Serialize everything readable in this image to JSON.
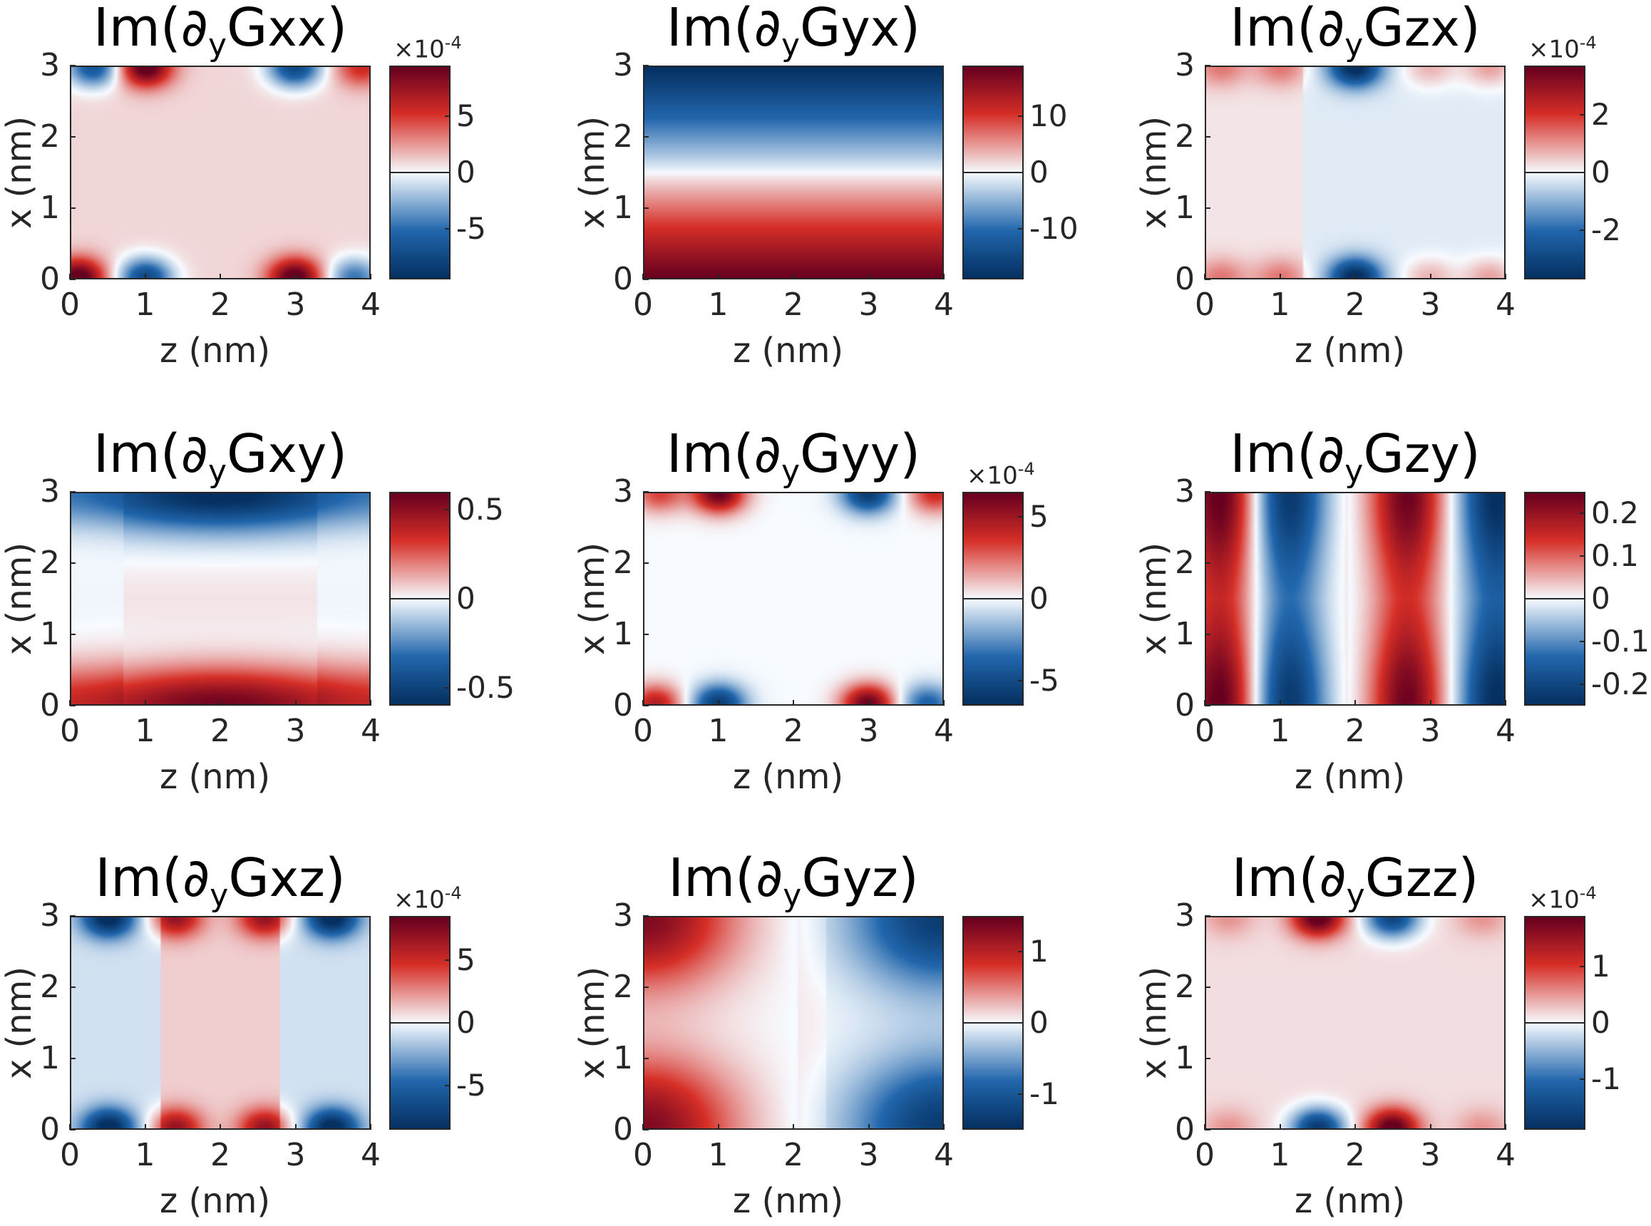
{
  "colors": {
    "negative": "#053061",
    "neutral": "#f7fbff",
    "positive": "#67001f"
  },
  "chart_data": [
    {
      "type": "heatmap",
      "title": {
        "prefix": "Im(∂",
        "sub": "y",
        "g": "G",
        "idx": "xx",
        "close": ")"
      },
      "xlabel": "z (nm)",
      "ylabel": "x (nm)",
      "x_ticks": [
        "0",
        "1",
        "2",
        "3",
        "4"
      ],
      "y_ticks": [
        "0",
        "1",
        "2",
        "3"
      ],
      "xlim": [
        0,
        4
      ],
      "ylim": [
        0,
        3
      ],
      "colorbar": {
        "multiplier": "×10",
        "exponent": "-4",
        "ticks": [
          {
            "value": 5,
            "label": "5"
          },
          {
            "value": 0,
            "label": "0"
          },
          {
            "value": -5,
            "label": "-5"
          }
        ],
        "lim": [
          -9.5,
          9.5
        ]
      },
      "pattern": "edge_lobes",
      "params": {
        "top": [
          [
            0.3,
            -0.8
          ],
          [
            1.0,
            1.0
          ],
          [
            3.0,
            -0.9
          ],
          [
            3.9,
            0.5
          ]
        ],
        "bottom": [
          [
            0.1,
            1.0
          ],
          [
            1.0,
            -0.9
          ],
          [
            3.0,
            1.0
          ],
          [
            3.8,
            -0.6
          ]
        ],
        "bg": 0.1
      }
    },
    {
      "type": "heatmap",
      "title": {
        "prefix": "Im(∂",
        "sub": "y",
        "g": "G",
        "idx": "yx",
        "close": ")"
      },
      "xlabel": "z (nm)",
      "ylabel": "x (nm)",
      "x_ticks": [
        "0",
        "1",
        "2",
        "3",
        "4"
      ],
      "y_ticks": [
        "0",
        "1",
        "2",
        "3"
      ],
      "xlim": [
        0,
        4
      ],
      "ylim": [
        0,
        3
      ],
      "colorbar": {
        "multiplier": "",
        "exponent": "",
        "ticks": [
          {
            "value": 10,
            "label": "10"
          },
          {
            "value": 0,
            "label": "0"
          },
          {
            "value": -10,
            "label": "-10"
          }
        ],
        "lim": [
          -19,
          19
        ]
      },
      "pattern": "vertical_gradient",
      "params": {
        "zero_at": 1.5
      }
    },
    {
      "type": "heatmap",
      "title": {
        "prefix": "Im(∂",
        "sub": "y",
        "g": "G",
        "idx": "zx",
        "close": ")"
      },
      "xlabel": "z (nm)",
      "ylabel": "x (nm)",
      "x_ticks": [
        "0",
        "1",
        "2",
        "3",
        "4"
      ],
      "y_ticks": [
        "0",
        "1",
        "2",
        "3"
      ],
      "xlim": [
        0,
        4
      ],
      "ylim": [
        0,
        3
      ],
      "colorbar": {
        "multiplier": "×10",
        "exponent": "-4",
        "ticks": [
          {
            "value": 2,
            "label": "2"
          },
          {
            "value": 0,
            "label": "0"
          },
          {
            "value": -2,
            "label": "-2"
          }
        ],
        "lim": [
          -3.7,
          3.7
        ]
      },
      "pattern": "edge_lobes",
      "params": {
        "top": [
          [
            0.2,
            0.3
          ],
          [
            1.0,
            0.3
          ],
          [
            2.0,
            -1.0
          ],
          [
            3.0,
            0.25
          ],
          [
            3.8,
            0.3
          ]
        ],
        "bottom": [
          [
            0.2,
            0.3
          ],
          [
            1.0,
            0.3
          ],
          [
            2.0,
            -1.0
          ],
          [
            3.0,
            0.25
          ],
          [
            3.8,
            0.3
          ]
        ],
        "bg": 0.06,
        "split": 1.3
      }
    },
    {
      "type": "heatmap",
      "title": {
        "prefix": "Im(∂",
        "sub": "y",
        "g": "G",
        "idx": "xy",
        "close": ")"
      },
      "xlabel": "z (nm)",
      "ylabel": "x (nm)",
      "x_ticks": [
        "0",
        "1",
        "2",
        "3",
        "4"
      ],
      "y_ticks": [
        "0",
        "1",
        "2",
        "3"
      ],
      "xlim": [
        0,
        4
      ],
      "ylim": [
        0,
        3
      ],
      "colorbar": {
        "multiplier": "",
        "exponent": "",
        "ticks": [
          {
            "value": 0.5,
            "label": "0.5"
          },
          {
            "value": 0,
            "label": "0"
          },
          {
            "value": -0.5,
            "label": "-0.5"
          }
        ],
        "lim": [
          -0.6,
          0.6
        ]
      },
      "pattern": "horizontal_bands",
      "params": {}
    },
    {
      "type": "heatmap",
      "title": {
        "prefix": "Im(∂",
        "sub": "y",
        "g": "G",
        "idx": "yy",
        "close": ")"
      },
      "xlabel": "z (nm)",
      "ylabel": "x (nm)",
      "x_ticks": [
        "0",
        "1",
        "2",
        "3",
        "4"
      ],
      "y_ticks": [
        "0",
        "1",
        "2",
        "3"
      ],
      "xlim": [
        0,
        4
      ],
      "ylim": [
        0,
        3
      ],
      "colorbar": {
        "multiplier": "×10",
        "exponent": "-4",
        "ticks": [
          {
            "value": 5,
            "label": "5"
          },
          {
            "value": 0,
            "label": "0"
          },
          {
            "value": -5,
            "label": "-5"
          }
        ],
        "lim": [
          -6.5,
          6.5
        ]
      },
      "pattern": "edge_lobes",
      "params": {
        "top": [
          [
            0.2,
            0.5
          ],
          [
            1.0,
            1.0
          ],
          [
            3.0,
            -0.9
          ],
          [
            3.9,
            0.6
          ]
        ],
        "bottom": [
          [
            0.15,
            0.7
          ],
          [
            1.0,
            -0.9
          ],
          [
            3.0,
            1.0
          ],
          [
            3.8,
            -0.6
          ]
        ],
        "bg": 0.0
      }
    },
    {
      "type": "heatmap",
      "title": {
        "prefix": "Im(∂",
        "sub": "y",
        "g": "G",
        "idx": "zy",
        "close": ")"
      },
      "xlabel": "z (nm)",
      "ylabel": "x (nm)",
      "x_ticks": [
        "0",
        "1",
        "2",
        "3",
        "4"
      ],
      "y_ticks": [
        "0",
        "1",
        "2",
        "3"
      ],
      "xlim": [
        0,
        4
      ],
      "ylim": [
        0,
        3
      ],
      "colorbar": {
        "multiplier": "",
        "exponent": "",
        "ticks": [
          {
            "value": 0.2,
            "label": "0.2"
          },
          {
            "value": 0.1,
            "label": "0.1"
          },
          {
            "value": 0,
            "label": "0"
          },
          {
            "value": -0.1,
            "label": "-0.1"
          },
          {
            "value": -0.2,
            "label": "-0.2"
          }
        ],
        "lim": [
          -0.25,
          0.25
        ]
      },
      "pattern": "column_lobes",
      "params": {}
    },
    {
      "type": "heatmap",
      "title": {
        "prefix": "Im(∂",
        "sub": "y",
        "g": "G",
        "idx": "xz",
        "close": ")"
      },
      "xlabel": "z (nm)",
      "ylabel": "x (nm)",
      "x_ticks": [
        "0",
        "1",
        "2",
        "3",
        "4"
      ],
      "y_ticks": [
        "0",
        "1",
        "2",
        "3"
      ],
      "xlim": [
        0,
        4
      ],
      "ylim": [
        0,
        3
      ],
      "colorbar": {
        "multiplier": "×10",
        "exponent": "-4",
        "ticks": [
          {
            "value": 5,
            "label": "5"
          },
          {
            "value": 0,
            "label": "0"
          },
          {
            "value": -5,
            "label": "-5"
          }
        ],
        "lim": [
          -8.5,
          8.5
        ]
      },
      "pattern": "edge_lobes",
      "params": {
        "top": [
          [
            0.5,
            -1.0
          ],
          [
            1.4,
            0.7
          ],
          [
            2.6,
            0.7
          ],
          [
            3.5,
            -1.0
          ]
        ],
        "bottom": [
          [
            0.5,
            -1.0
          ],
          [
            1.4,
            0.7
          ],
          [
            2.6,
            0.7
          ],
          [
            3.5,
            -1.0
          ]
        ],
        "bg": 0.12,
        "center_band": true
      }
    },
    {
      "type": "heatmap",
      "title": {
        "prefix": "Im(∂",
        "sub": "y",
        "g": "G",
        "idx": "yz",
        "close": ")"
      },
      "xlabel": "z (nm)",
      "ylabel": "x (nm)",
      "x_ticks": [
        "0",
        "1",
        "2",
        "3",
        "4"
      ],
      "y_ticks": [
        "0",
        "1",
        "2",
        "3"
      ],
      "xlim": [
        0,
        4
      ],
      "ylim": [
        0,
        3
      ],
      "colorbar": {
        "multiplier": "",
        "exponent": "",
        "ticks": [
          {
            "value": 1,
            "label": "1"
          },
          {
            "value": 0,
            "label": "0"
          },
          {
            "value": -1,
            "label": "-1"
          }
        ],
        "lim": [
          -1.5,
          1.5
        ]
      },
      "pattern": "corner_lobes",
      "params": {}
    },
    {
      "type": "heatmap",
      "title": {
        "prefix": "Im(∂",
        "sub": "y",
        "g": "G",
        "idx": "zz",
        "close": ")"
      },
      "xlabel": "z (nm)",
      "ylabel": "x (nm)",
      "x_ticks": [
        "0",
        "1",
        "2",
        "3",
        "4"
      ],
      "y_ticks": [
        "0",
        "1",
        "2",
        "3"
      ],
      "xlim": [
        0,
        4
      ],
      "ylim": [
        0,
        3
      ],
      "colorbar": {
        "multiplier": "×10",
        "exponent": "-4",
        "ticks": [
          {
            "value": 1,
            "label": "1"
          },
          {
            "value": 0,
            "label": "0"
          },
          {
            "value": -1,
            "label": "-1"
          }
        ],
        "lim": [
          -1.9,
          1.9
        ]
      },
      "pattern": "edge_lobes",
      "params": {
        "top": [
          [
            0.3,
            0.2
          ],
          [
            1.5,
            1.0
          ],
          [
            2.5,
            -0.9
          ],
          [
            3.7,
            0.2
          ]
        ],
        "bottom": [
          [
            0.3,
            0.2
          ],
          [
            1.5,
            -1.0
          ],
          [
            2.5,
            1.0
          ],
          [
            3.7,
            0.2
          ]
        ],
        "bg": 0.08
      }
    }
  ]
}
